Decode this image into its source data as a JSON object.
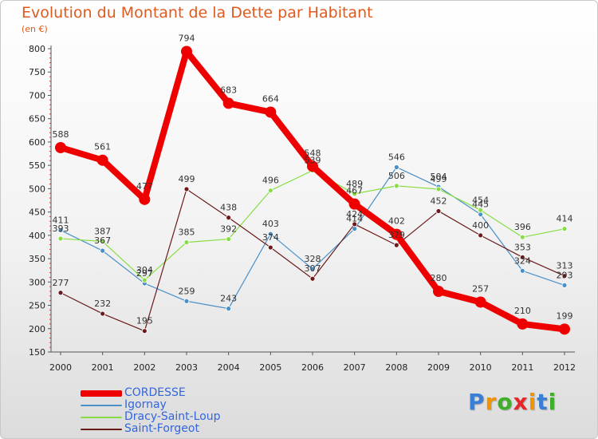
{
  "chart_data": {
    "type": "line",
    "title": "Evolution du Montant de la Dette par Habitant",
    "unit_label": "(en €)",
    "x": [
      "2000",
      "2001",
      "2002",
      "2003",
      "2004",
      "2005",
      "2006",
      "2007",
      "2008",
      "2009",
      "2010",
      "2011",
      "2012"
    ],
    "ylim": [
      150,
      800
    ],
    "yticks": [
      150,
      200,
      250,
      300,
      350,
      400,
      450,
      500,
      550,
      600,
      650,
      700,
      750,
      800
    ],
    "grid": false,
    "legend_position": "bottom-left",
    "series": [
      {
        "name": "CORDESSE",
        "color": "#ee0000",
        "values": [
          588,
          561,
          477,
          794,
          683,
          664,
          548,
          467,
          402,
          280,
          257,
          210,
          199
        ]
      },
      {
        "name": "Igornay",
        "color": "#4a90c8",
        "values": [
          411,
          367,
          297,
          259,
          243,
          403,
          328,
          414,
          546,
          504,
          445,
          324,
          293
        ]
      },
      {
        "name": "Dracy-Saint-Loup",
        "color": "#88dd44",
        "values": [
          393,
          387,
          304,
          385,
          392,
          496,
          539,
          489,
          506,
          499,
          454,
          396,
          414
        ]
      },
      {
        "name": "Saint-Forgeot",
        "color": "#6b1a1a",
        "values": [
          277,
          232,
          195,
          499,
          438,
          374,
          307,
          424,
          379,
          452,
          400,
          353,
          313
        ]
      }
    ]
  },
  "logo": {
    "letters": [
      "P",
      "r",
      "o",
      "x",
      "i",
      "t",
      "i"
    ],
    "colors": [
      "#3a7fd5",
      "#f29400",
      "#3fae2a",
      "#e8262a",
      "#f29400",
      "#3a7fd5",
      "#3fae2a"
    ]
  }
}
